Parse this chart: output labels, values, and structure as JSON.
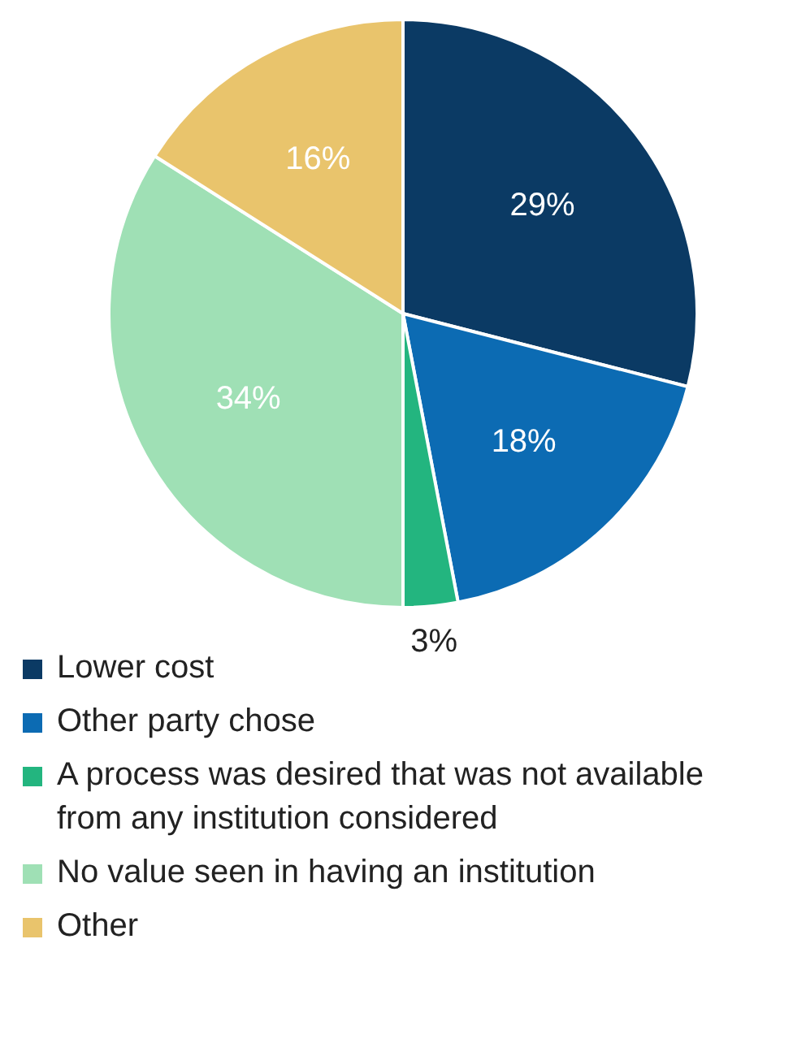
{
  "chart_data": {
    "type": "pie",
    "categories": [
      "Lower cost",
      "Other party chose",
      "A process was desired that was not available from any institution considered",
      "No value seen in having an institution",
      "Other"
    ],
    "values": [
      29,
      18,
      3,
      34,
      16
    ],
    "colors": [
      "#0b3a64",
      "#0c6bb3",
      "#23b57f",
      "#9fe0b5",
      "#e9c46c"
    ],
    "value_labels": [
      "29%",
      "18%",
      "3%",
      "34%",
      "16%"
    ],
    "legend": "bottom"
  }
}
